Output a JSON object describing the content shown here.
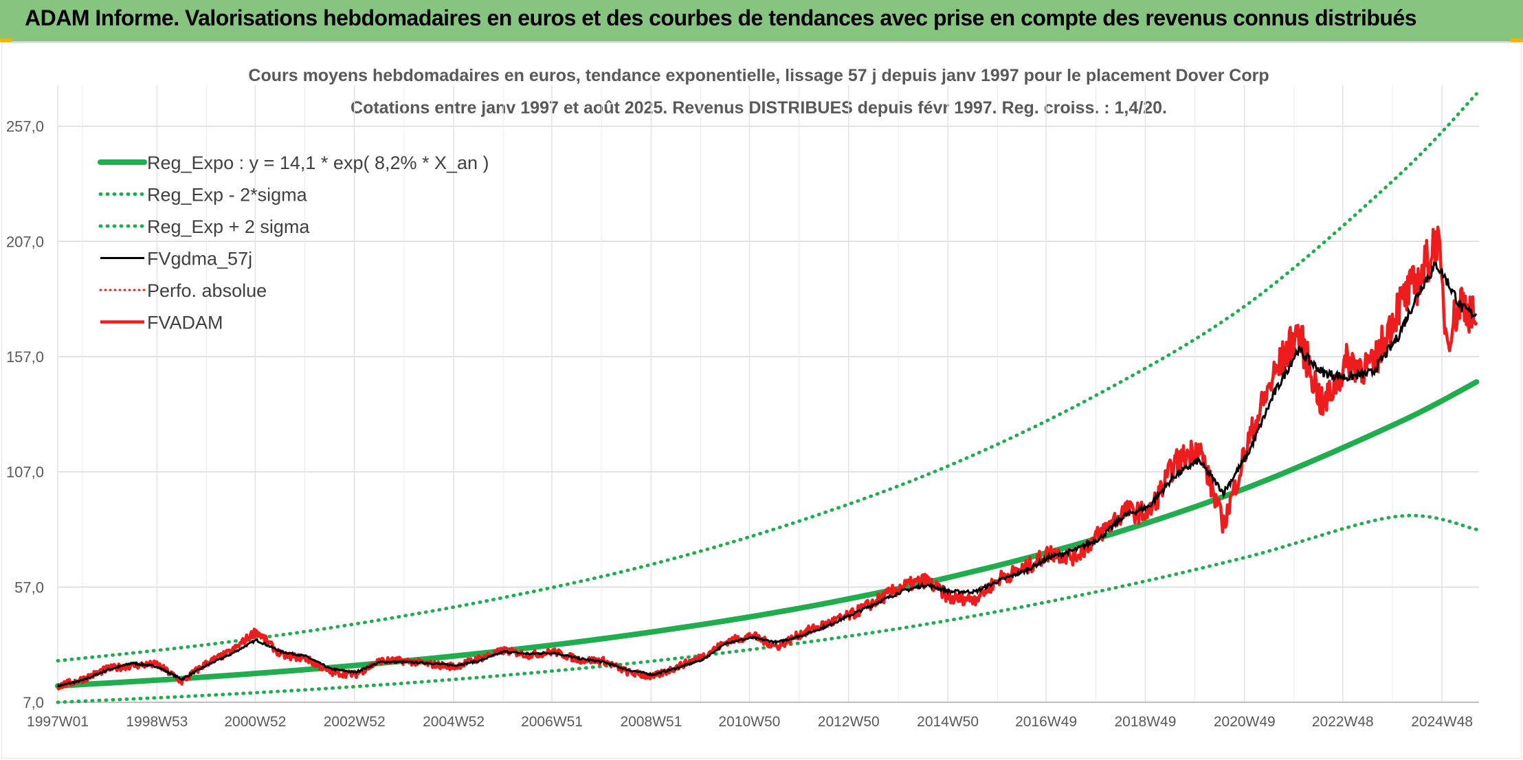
{
  "banner": {
    "title": "ADAM Informe. Valorisations hebdomadaires en euros et des courbes de tendances avec prise en compte des revenus connus distribués"
  },
  "colors": {
    "banner_bg": "#86c57f",
    "reg_expo": "#1fad4e",
    "mean": "#000000",
    "adam": "#ee1c1c",
    "perfo": "#ee1c1c"
  },
  "chart_data": {
    "type": "line",
    "title": "Cours moyens hebdomadaires en euros, tendance exponentielle, lissage 57 j depuis janv 1997 pour le placement Dover Corp",
    "subtitle": "Cotations entre janv 1997 et août 2025. Revenus DISTRIBUES depuis févr 1997. Reg. croiss. : 1,4/20.",
    "xlabel": "",
    "ylabel": "",
    "x_ticks": [
      "1997W01",
      "1998W53",
      "2000W52",
      "2002W52",
      "2004W52",
      "2006W51",
      "2008W51",
      "2010W50",
      "2012W50",
      "2014W50",
      "2016W49",
      "2018W49",
      "2020W49",
      "2022W48",
      "2024W48"
    ],
    "x_range": [
      1997.0,
      2025.65
    ],
    "y_ticks": [
      "7,0",
      "57,0",
      "107,0",
      "157,0",
      "207,0",
      "257,0"
    ],
    "y_range": [
      7,
      270
    ],
    "grid": true,
    "legend_position": "top-left",
    "series": [
      {
        "name": "Reg_Expo : y = 14,1 * exp( 8,2% *  X_an )",
        "style": "solid-thick",
        "color_key": "reg_expo",
        "x": [
          1997.0,
          2000,
          2003,
          2006,
          2009,
          2012,
          2015,
          2018,
          2021,
          2024,
          2025.6
        ],
        "y": [
          14.1,
          18.0,
          23.0,
          29.4,
          37.6,
          48.0,
          61.4,
          78.4,
          100.3,
          128.1,
          146.0
        ]
      },
      {
        "name": "Reg_Exp - 2*sigma",
        "style": "dotted",
        "color_key": "reg_expo",
        "x": [
          1997.0,
          2000,
          2003,
          2006,
          2009,
          2012,
          2015,
          2018,
          2021,
          2024,
          2025.6
        ],
        "y": [
          7.0,
          10.0,
          13.8,
          18.7,
          24.9,
          32.8,
          42.7,
          55.2,
          70.2,
          87.7,
          82.0
        ]
      },
      {
        "name": "Reg_Exp + 2 sigma",
        "style": "dotted",
        "color_key": "reg_expo",
        "x": [
          1997.0,
          2000,
          2003,
          2006,
          2009,
          2012,
          2015,
          2018,
          2021,
          2024,
          2025.6
        ],
        "y": [
          25.0,
          32.0,
          41.0,
          52.5,
          67.0,
          86.0,
          110.0,
          141.0,
          180.0,
          235.0,
          271.0
        ]
      },
      {
        "name": "FVgdma_57j",
        "style": "solid-thin",
        "color_key": "mean",
        "x": [
          1997.0,
          1997.5,
          1998.0,
          1998.5,
          1999.0,
          1999.5,
          2000.0,
          2000.5,
          2001.0,
          2001.5,
          2002.0,
          2002.5,
          2003.0,
          2003.5,
          2004.0,
          2004.5,
          2005.0,
          2005.5,
          2006.0,
          2006.5,
          2007.0,
          2007.5,
          2008.0,
          2008.5,
          2009.0,
          2009.5,
          2010.0,
          2010.5,
          2011.0,
          2011.5,
          2012.0,
          2012.5,
          2013.0,
          2013.5,
          2014.0,
          2014.5,
          2015.0,
          2015.5,
          2016.0,
          2016.5,
          2017.0,
          2017.5,
          2018.0,
          2018.5,
          2019.0,
          2019.5,
          2020.0,
          2020.5,
          2021.0,
          2021.5,
          2022.0,
          2022.5,
          2023.0,
          2023.5,
          2024.0,
          2024.5,
          2024.8,
          2025.0,
          2025.3,
          2025.6
        ],
        "y": [
          14.0,
          16.5,
          21.0,
          24.0,
          22.5,
          17.0,
          23.0,
          28.0,
          34.0,
          29.0,
          27.0,
          21.5,
          20.0,
          24.5,
          24.5,
          24.0,
          23.0,
          25.0,
          29.0,
          28.0,
          28.5,
          26.0,
          24.5,
          21.0,
          19.0,
          22.0,
          25.5,
          33.0,
          35.0,
          33.0,
          36.0,
          40.0,
          45.0,
          50.0,
          55.0,
          58.0,
          55.0,
          55.0,
          60.0,
          64.0,
          70.0,
          73.0,
          78.0,
          88.0,
          92.0,
          105.0,
          112.0,
          98.0,
          115.0,
          140.0,
          160.0,
          150.0,
          148.0,
          150.0,
          165.0,
          188.0,
          197.0,
          190.0,
          178.0,
          175.0
        ]
      },
      {
        "name": "Perfo. absolue",
        "style": "dotted-thin",
        "color_key": "perfo",
        "x": [],
        "y": []
      },
      {
        "name": "FVADAM",
        "style": "solid-medium",
        "color_key": "adam",
        "x": [
          1997.0,
          1997.5,
          1998.0,
          1998.5,
          1999.0,
          1999.5,
          2000.0,
          2000.5,
          2001.0,
          2001.5,
          2002.0,
          2002.5,
          2003.0,
          2003.5,
          2004.0,
          2004.5,
          2005.0,
          2005.5,
          2006.0,
          2006.5,
          2007.0,
          2007.5,
          2008.0,
          2008.5,
          2009.0,
          2009.5,
          2010.0,
          2010.5,
          2011.0,
          2011.5,
          2012.0,
          2012.5,
          2013.0,
          2013.5,
          2014.0,
          2014.5,
          2015.0,
          2015.5,
          2016.0,
          2016.5,
          2017.0,
          2017.5,
          2018.0,
          2018.5,
          2019.0,
          2019.5,
          2020.0,
          2020.5,
          2021.0,
          2021.5,
          2022.0,
          2022.5,
          2023.0,
          2023.5,
          2024.0,
          2024.5,
          2024.8,
          2025.0,
          2025.3,
          2025.6
        ],
        "y": [
          14.0,
          17.0,
          21.5,
          23.0,
          23.5,
          16.0,
          24.0,
          29.0,
          38.0,
          27.5,
          26.0,
          20.0,
          19.0,
          25.0,
          25.0,
          23.5,
          22.5,
          26.0,
          29.5,
          27.5,
          29.0,
          25.5,
          25.0,
          20.0,
          18.0,
          22.5,
          27.0,
          33.5,
          36.0,
          31.0,
          37.0,
          41.0,
          45.0,
          51.0,
          57.0,
          60.0,
          52.0,
          52.0,
          61.0,
          65.0,
          72.0,
          70.0,
          80.0,
          90.0,
          89.0,
          110.0,
          118.0,
          84.0,
          120.0,
          148.0,
          168.0,
          135.0,
          155.0,
          152.0,
          178.0,
          192.0,
          210.0,
          165.0,
          182.0,
          172.0
        ]
      }
    ]
  }
}
